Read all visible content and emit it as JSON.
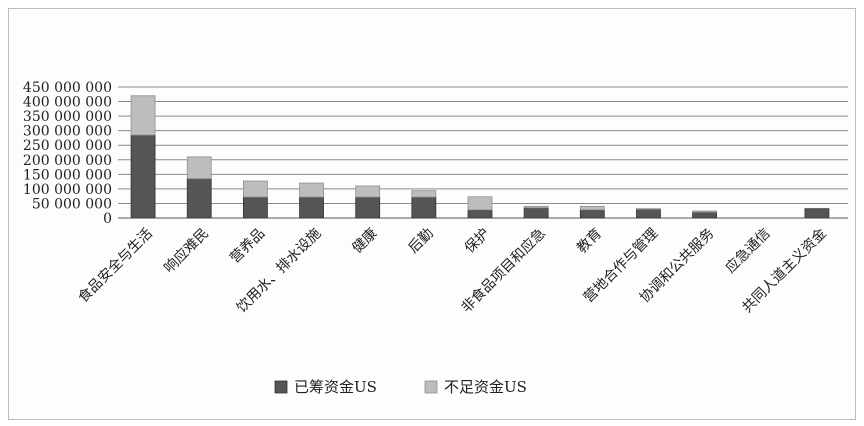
{
  "chart_data": {
    "type": "bar",
    "stacked": true,
    "title": "",
    "xlabel": "",
    "ylabel": "",
    "ylim": [
      0,
      450000000
    ],
    "y_ticks": [
      "450 000 000",
      "400 000 000",
      "350 000 000",
      "300 000 000",
      "250 000 000",
      "200 000 000",
      "150 000 000",
      "100 000 000",
      "50 000 000",
      "0"
    ],
    "y_tick_values": [
      450000000,
      400000000,
      350000000,
      300000000,
      250000000,
      200000000,
      150000000,
      100000000,
      50000000,
      0
    ],
    "grid": true,
    "legend_position": "bottom",
    "categories": [
      "食品安全与生活",
      "响应难民",
      "营养品",
      "饮用水、排水设施",
      "健康",
      "后勤",
      "保护",
      "非食品项目和应急",
      "教育",
      "营地合作与管理",
      "协调和公共服务",
      "应急通信",
      "共同人道主义资金"
    ],
    "series": [
      {
        "name": "已筹资金US",
        "color": "#555555",
        "values": [
          285000000,
          135000000,
          72000000,
          72000000,
          72000000,
          72000000,
          28000000,
          35000000,
          28000000,
          30000000,
          20000000,
          0,
          32000000
        ]
      },
      {
        "name": "不足资金US",
        "color": "#bdbdbd",
        "values": [
          135000000,
          75000000,
          55000000,
          48000000,
          38000000,
          22000000,
          45000000,
          5000000,
          12000000,
          2000000,
          4000000,
          0,
          0
        ]
      }
    ]
  }
}
